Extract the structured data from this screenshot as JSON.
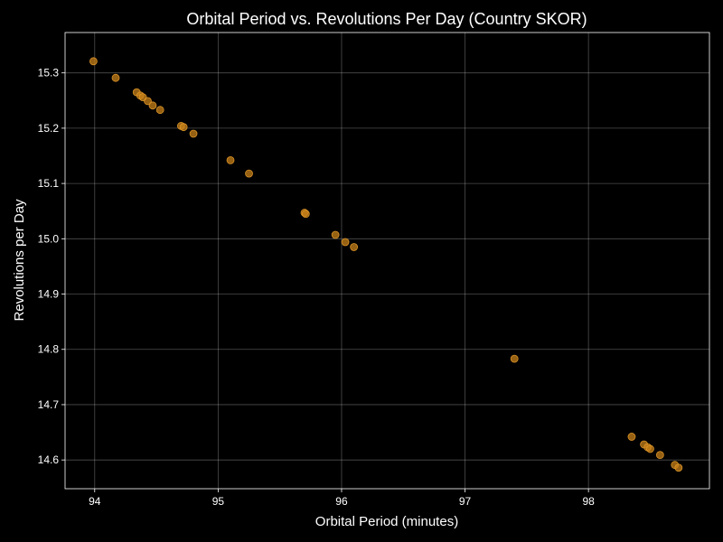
{
  "chart_data": {
    "type": "scatter",
    "title": "Orbital Period vs. Revolutions Per Day (Country SKOR)",
    "xlabel": "Orbital Period (minutes)",
    "ylabel": "Revolutions per Day",
    "xlim": [
      93.76,
      98.98
    ],
    "ylim": [
      14.548,
      15.373
    ],
    "xticks": [
      94,
      95,
      96,
      97,
      98
    ],
    "yticks": [
      14.6,
      14.7,
      14.8,
      14.9,
      15.0,
      15.1,
      15.2,
      15.3
    ],
    "xtick_labels": [
      "94",
      "95",
      "96",
      "97",
      "98"
    ],
    "ytick_labels": [
      "14.6",
      "14.7",
      "14.8",
      "14.9",
      "15.0",
      "15.1",
      "15.2",
      "15.3"
    ],
    "grid": true,
    "point_color": "#c8821a",
    "points": [
      {
        "x": 93.99,
        "y": 15.321
      },
      {
        "x": 94.17,
        "y": 15.291
      },
      {
        "x": 94.34,
        "y": 15.265
      },
      {
        "x": 94.37,
        "y": 15.259
      },
      {
        "x": 94.39,
        "y": 15.256
      },
      {
        "x": 94.43,
        "y": 15.249
      },
      {
        "x": 94.47,
        "y": 15.241
      },
      {
        "x": 94.53,
        "y": 15.233
      },
      {
        "x": 94.7,
        "y": 15.204
      },
      {
        "x": 94.72,
        "y": 15.202
      },
      {
        "x": 94.8,
        "y": 15.19
      },
      {
        "x": 95.1,
        "y": 15.142
      },
      {
        "x": 95.25,
        "y": 15.118
      },
      {
        "x": 95.7,
        "y": 15.047
      },
      {
        "x": 95.71,
        "y": 15.045
      },
      {
        "x": 95.95,
        "y": 15.007
      },
      {
        "x": 96.03,
        "y": 14.994
      },
      {
        "x": 96.1,
        "y": 14.985
      },
      {
        "x": 97.4,
        "y": 14.783
      },
      {
        "x": 98.35,
        "y": 14.642
      },
      {
        "x": 98.45,
        "y": 14.628
      },
      {
        "x": 98.48,
        "y": 14.623
      },
      {
        "x": 98.5,
        "y": 14.62
      },
      {
        "x": 98.58,
        "y": 14.609
      },
      {
        "x": 98.7,
        "y": 14.591
      },
      {
        "x": 98.73,
        "y": 14.586
      }
    ]
  }
}
